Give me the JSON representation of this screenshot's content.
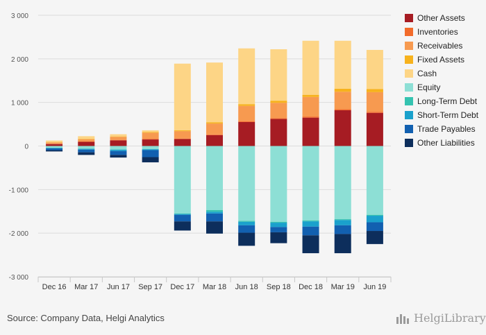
{
  "chart_data": {
    "type": "bar",
    "stacked": true,
    "categories": [
      "Dec 16",
      "Mar 17",
      "Jun 17",
      "Sep 17",
      "Dec 17",
      "Mar 18",
      "Jun 18",
      "Sep 18",
      "Dec 18",
      "Mar 19",
      "Jun 19"
    ],
    "ylim": [
      -3000,
      3000
    ],
    "yticks": [
      3000,
      2000,
      1000,
      0,
      -1000,
      -2000,
      -3000
    ],
    "ytick_labels": [
      "3 000",
      "2 000",
      "1 000",
      "0",
      "-1 000",
      "-2 000",
      "-3 000"
    ],
    "grid": true,
    "legend_position": "right",
    "series": [
      {
        "name": "Other Assets",
        "color": "#a61c23",
        "values": [
          45,
          95,
          130,
          150,
          160,
          250,
          550,
          620,
          650,
          820,
          760
        ]
      },
      {
        "name": "Inventories",
        "color": "#f26b2a",
        "values": [
          5,
          10,
          10,
          15,
          10,
          15,
          20,
          20,
          25,
          25,
          25
        ]
      },
      {
        "name": "Receivables",
        "color": "#f79a50",
        "values": [
          30,
          50,
          70,
          140,
          170,
          250,
          350,
          350,
          450,
          400,
          450
        ]
      },
      {
        "name": "Fixed Assets",
        "color": "#f7b21d",
        "values": [
          5,
          10,
          10,
          15,
          20,
          30,
          40,
          50,
          50,
          70,
          70
        ]
      },
      {
        "name": "Cash",
        "color": "#fdd586",
        "values": [
          40,
          60,
          50,
          40,
          1530,
          1370,
          1280,
          1180,
          1240,
          1100,
          900
        ]
      },
      {
        "name": "Equity",
        "color": "#8ddfd5",
        "values": [
          -40,
          -60,
          -80,
          -70,
          -1550,
          -1470,
          -1720,
          -1740,
          -1710,
          -1680,
          -1580
        ]
      },
      {
        "name": "Long-Term Debt",
        "color": "#35c3b0",
        "values": [
          -5,
          -5,
          -5,
          -5,
          -10,
          -40,
          -20,
          -20,
          -20,
          -20,
          -20
        ]
      },
      {
        "name": "Short-Term Debt",
        "color": "#1aa1cc",
        "values": [
          -10,
          -20,
          -30,
          -20,
          -20,
          -40,
          -80,
          -100,
          -120,
          -120,
          -150
        ]
      },
      {
        "name": "Trade Payables",
        "color": "#1260b0",
        "values": [
          -40,
          -60,
          -90,
          -160,
          -150,
          -180,
          -170,
          -120,
          -200,
          -200,
          -200
        ]
      },
      {
        "name": "Other Liabilities",
        "color": "#0d2e5c",
        "values": [
          -30,
          -60,
          -60,
          -120,
          -210,
          -280,
          -300,
          -250,
          -410,
          -440,
          -300
        ]
      }
    ]
  },
  "source_text": "Source: Company Data, Helgi Analytics",
  "logo_text": "HelgiLibrary"
}
